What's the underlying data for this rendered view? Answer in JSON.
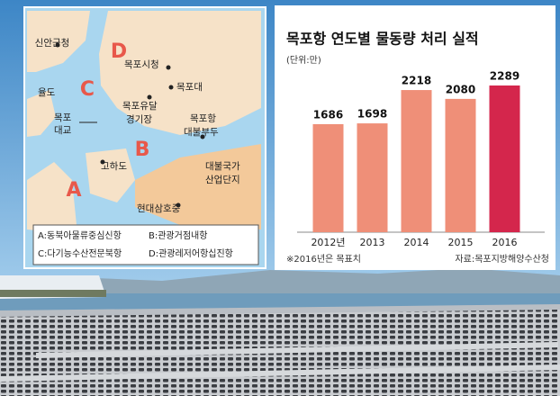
{
  "chart_data": {
    "type": "bar",
    "title": "목포항 연도별 물동량 처리 실적",
    "subtitle": "(단위:만)",
    "categories": [
      "2012년",
      "2013",
      "2014",
      "2015",
      "2016"
    ],
    "values": [
      1686,
      1698,
      2218,
      2080,
      2289
    ],
    "colors": [
      "#ef8f78",
      "#ef8f78",
      "#ef8f78",
      "#ef8f78",
      "#d4264c"
    ],
    "note": "※2016년은 목표치",
    "source": "자료:목포지방해양수산청"
  },
  "map": {
    "places": [
      "신안군청",
      "목포시청",
      "목포대",
      "율도",
      "목포유달",
      "경기장",
      "목포",
      "대교",
      "목포항",
      "대불부두",
      "고하도",
      "대불국가",
      "산업단지",
      "현대삼호중"
    ],
    "zones": [
      "A",
      "B",
      "C",
      "D"
    ],
    "legend": [
      "A:동북아물류중심신항",
      "B:관광거점내항",
      "C:다기능수산전문북항",
      "D:관광레저어항십진항"
    ]
  }
}
